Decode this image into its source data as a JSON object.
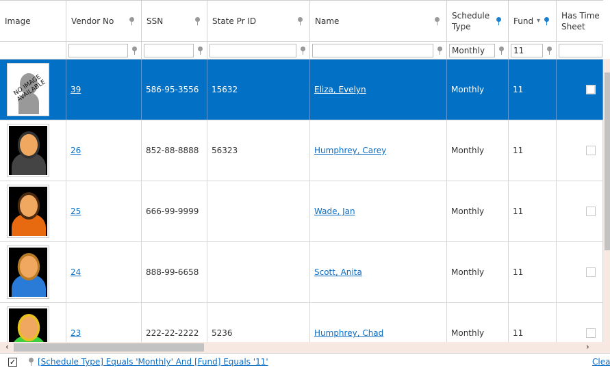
{
  "columns": [
    {
      "label": "Image",
      "filter": false
    },
    {
      "label": "Vendor No",
      "filter": true,
      "filter_value": ""
    },
    {
      "label": "SSN",
      "filter": true,
      "filter_value": ""
    },
    {
      "label": "State Pr ID",
      "filter": true,
      "filter_value": ""
    },
    {
      "label": "Name",
      "filter": true,
      "filter_value": ""
    },
    {
      "label": "Schedule Type",
      "filter": true,
      "filter_value": "Monthly",
      "active": true
    },
    {
      "label": "Fund",
      "filter": true,
      "filter_value": "11",
      "active": true,
      "sorted": "desc"
    },
    {
      "label": "Has Time Sheet",
      "filter": true,
      "filter_value": ""
    }
  ],
  "rows": [
    {
      "image": "no-image",
      "no_image_text": "NO IMAGE AVAILABLE",
      "vendor_no": "39",
      "ssn": "586-95-3556",
      "state_pr_id": "15632",
      "name": "Eliza, Evelyn",
      "schedule_type": "Monthly",
      "fund": "11",
      "has_time_sheet": false,
      "selected": true
    },
    {
      "image": "avatar-dark-hood",
      "vendor_no": "26",
      "ssn": "852-88-8888",
      "state_pr_id": "56323",
      "name": "Humphrey, Carey",
      "schedule_type": "Monthly",
      "fund": "11",
      "has_time_sheet": false
    },
    {
      "image": "avatar-orange",
      "vendor_no": "25",
      "ssn": "666-99-9999",
      "state_pr_id": "",
      "name": "Wade, Jan",
      "schedule_type": "Monthly",
      "fund": "11",
      "has_time_sheet": false
    },
    {
      "image": "avatar-blue",
      "vendor_no": "24",
      "ssn": "888-99-6658",
      "state_pr_id": "",
      "name": "Scott, Anita",
      "schedule_type": "Monthly",
      "fund": "11",
      "has_time_sheet": false
    },
    {
      "image": "avatar-green",
      "vendor_no": "23",
      "ssn": "222-22-2222",
      "state_pr_id": "5236",
      "name": "Humphrey, Chad",
      "schedule_type": "Monthly",
      "fund": "11",
      "has_time_sheet": false
    }
  ],
  "footer": {
    "filter_enabled": true,
    "filter_text": "[Schedule Type] Equals 'Monthly' And [Fund] Equals '11'",
    "clear_label": "Clear"
  },
  "colors": {
    "selection": "#0270c5",
    "link": "#0b6cc4",
    "active_filter": "#1b7fd0"
  }
}
